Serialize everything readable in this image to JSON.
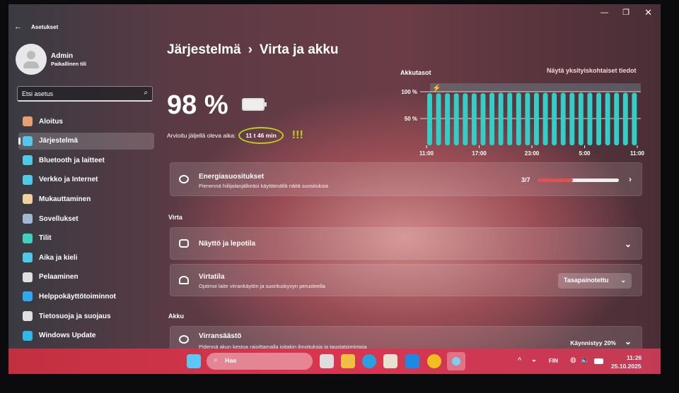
{
  "window": {
    "app_title": "Asetukset",
    "controls": [
      "minimize",
      "maximize",
      "close"
    ]
  },
  "user": {
    "name": "Admin",
    "account_type": "Paikallinen tili"
  },
  "search": {
    "placeholder": "Etsi asetus"
  },
  "sidebar": {
    "items": [
      {
        "label": "Aloitus",
        "icon": "home-icon",
        "color": "#e8a070"
      },
      {
        "label": "Järjestelmä",
        "icon": "monitor-icon",
        "color": "#50c8e8",
        "selected": true
      },
      {
        "label": "Bluetooth ja laitteet",
        "icon": "bluetooth-icon",
        "color": "#50c8e8"
      },
      {
        "label": "Verkko ja Internet",
        "icon": "wifi-icon",
        "color": "#50c8e8"
      },
      {
        "label": "Mukauttaminen",
        "icon": "brush-icon",
        "color": "#f0d0a0"
      },
      {
        "label": "Sovellukset",
        "icon": "apps-icon",
        "color": "#a0b8d0"
      },
      {
        "label": "Tilit",
        "icon": "person-icon",
        "color": "#40d0c0"
      },
      {
        "label": "Aika ja kieli",
        "icon": "globe-clock-icon",
        "color": "#50c8e8"
      },
      {
        "label": "Pelaaminen",
        "icon": "gamepad-icon",
        "color": "#e0e0e0"
      },
      {
        "label": "Helppokäyttötoiminnot",
        "icon": "accessibility-icon",
        "color": "#30a8f0"
      },
      {
        "label": "Tietosuoja ja suojaus",
        "icon": "shield-icon",
        "color": "#e0e0e0"
      },
      {
        "label": "Windows Update",
        "icon": "update-icon",
        "color": "#30b8e8"
      }
    ]
  },
  "breadcrumb": {
    "parent": "Järjestelmä",
    "separator": "›",
    "current": "Virta ja akku"
  },
  "battery": {
    "percent": "98 %",
    "remaining_label": "Arvioitu jäljellä oleva aika:",
    "remaining_value": "11 t 46 min",
    "annotation": "!!!",
    "annotation_color": "#b8d020"
  },
  "chart_data": {
    "type": "bar",
    "title": "Akkutasot",
    "link": "Näytä yksityiskohtaiset tiedot",
    "x_ticks": [
      "11:00",
      "17:00",
      "23:00",
      "5:00",
      "11:00"
    ],
    "y_ticks": [
      "100 %",
      "50 %"
    ],
    "ylim": [
      0,
      100
    ],
    "values": [
      97,
      97,
      97,
      97,
      97,
      97,
      97,
      98,
      98,
      98,
      98,
      98,
      98,
      98,
      98,
      98,
      98,
      98,
      98,
      98,
      98,
      98,
      98,
      98
    ],
    "color": "#30d0c8",
    "charging_icon": "lightning-icon"
  },
  "energy": {
    "title": "Energiasuositukset",
    "subtitle": "Pienennä hiilijalanjälkeäsi käyttämällä näitä suosituksia",
    "progress": "3/7",
    "progress_fraction": 0.43
  },
  "sections": {
    "power": "Virta",
    "battery": "Akku"
  },
  "screen_sleep": {
    "title": "Näyttö ja lepotila"
  },
  "power_mode": {
    "title": "Virtatila",
    "subtitle": "Optimoi laite virrankäytön ja suorituskyvyn perusteella",
    "value": "Tasapainotettu"
  },
  "battery_saver": {
    "title": "Virransäästö",
    "subtitle": "Pidennä akun kestoa rajoittamalla joitakin ilmoituksia ja taustatoimintoja",
    "status": "Käynnistyy 20%"
  },
  "taskbar": {
    "search_placeholder": "Hae",
    "language": "FIN",
    "time": "11:26",
    "date": "25.10.2025"
  }
}
